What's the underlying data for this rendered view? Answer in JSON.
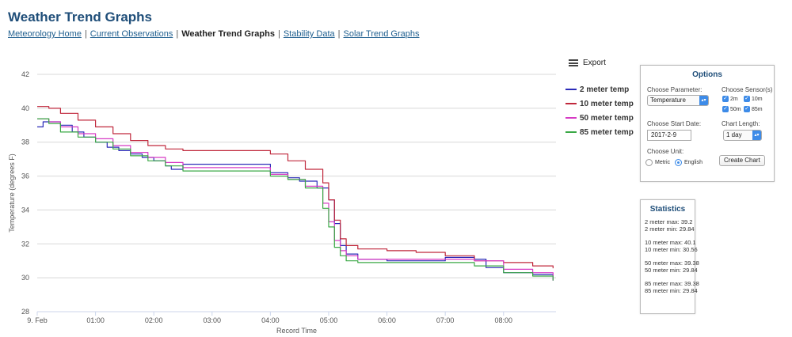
{
  "page": {
    "title": "Weather Trend Graphs"
  },
  "nav": {
    "items": [
      {
        "label": "Meteorology Home",
        "current": false
      },
      {
        "label": "Current Observations",
        "current": false
      },
      {
        "label": "Weather Trend Graphs",
        "current": true
      },
      {
        "label": "Stability Data",
        "current": false
      },
      {
        "label": "Solar Trend Graphs",
        "current": false
      }
    ],
    "separator": "|"
  },
  "export": {
    "label": "Export",
    "icon": "menu-icon"
  },
  "legend": [
    {
      "label": "2 meter temp",
      "color": "#2b2bb8"
    },
    {
      "label": "10 meter temp",
      "color": "#c0283c"
    },
    {
      "label": "50 meter temp",
      "color": "#d63bc4"
    },
    {
      "label": "85 meter temp",
      "color": "#3aa845"
    }
  ],
  "options": {
    "title": "Options",
    "parameter_label": "Choose Parameter:",
    "parameter_value": "Temperature",
    "sensors_label": "Choose Sensor(s)",
    "sensors": [
      {
        "label": "2m",
        "checked": true
      },
      {
        "label": "10m",
        "checked": true
      },
      {
        "label": "50m",
        "checked": true
      },
      {
        "label": "85m",
        "checked": true
      }
    ],
    "start_date_label": "Choose Start Date:",
    "start_date_value": "2017-2-9",
    "chart_length_label": "Chart Length:",
    "chart_length_value": "1 day",
    "unit_label": "Choose Unit:",
    "unit_metric": "Metric",
    "unit_english": "English",
    "unit_selected": "English",
    "create_button": "Create Chart"
  },
  "statistics": {
    "title": "Statistics",
    "groups": [
      {
        "max_label": "2 meter max:",
        "max": "39.2",
        "min_label": "2 meter min:",
        "min": "29.84"
      },
      {
        "max_label": "10 meter max:",
        "max": "40.1",
        "min_label": "10 meter min:",
        "min": "30.56"
      },
      {
        "max_label": "50 meter max:",
        "max": "39.38",
        "min_label": "50 meter min:",
        "min": "29.84"
      },
      {
        "max_label": "85 meter max:",
        "max": "39.38",
        "min_label": "85 meter min:",
        "min": "29.84"
      }
    ]
  },
  "chart_data": {
    "type": "line",
    "xlabel": "Record Time",
    "ylabel": "Temperature (degrees F)",
    "ylim": [
      28,
      42
    ],
    "yticks": [
      28,
      30,
      32,
      34,
      36,
      38,
      40,
      42
    ],
    "xlim": [
      0,
      8.9
    ],
    "xtick_values": [
      0,
      1,
      2,
      3,
      4,
      5,
      6,
      7,
      8
    ],
    "xticks": [
      "9. Feb",
      "01:00",
      "02:00",
      "03:00",
      "04:00",
      "05:00",
      "06:00",
      "07:00",
      "08:00"
    ],
    "grid": true,
    "series": [
      {
        "name": "2 meter temp",
        "color": "#2b2bb8",
        "x": [
          0,
          0.1,
          0.2,
          0.4,
          0.6,
          0.8,
          1.0,
          1.2,
          1.4,
          1.6,
          1.8,
          2.0,
          2.2,
          2.3,
          2.5,
          3.0,
          3.5,
          4.0,
          4.3,
          4.5,
          4.8,
          5.0,
          5.1,
          5.2,
          5.3,
          5.5,
          6.0,
          6.5,
          7.0,
          7.5,
          7.7,
          8.0,
          8.5,
          8.85
        ],
        "y": [
          38.9,
          39.2,
          39.2,
          39.0,
          38.6,
          38.3,
          38.0,
          37.7,
          37.5,
          37.3,
          37.1,
          36.9,
          36.6,
          36.4,
          36.7,
          36.7,
          36.7,
          36.2,
          35.9,
          35.7,
          35.3,
          34.6,
          33.2,
          31.9,
          31.4,
          31.1,
          31.0,
          31.0,
          31.2,
          31.1,
          30.6,
          30.3,
          30.2,
          29.84
        ]
      },
      {
        "name": "10 meter temp",
        "color": "#c0283c",
        "x": [
          0,
          0.2,
          0.4,
          0.7,
          1.0,
          1.3,
          1.6,
          1.9,
          2.2,
          2.5,
          3.0,
          3.5,
          4.0,
          4.3,
          4.6,
          4.9,
          5.0,
          5.1,
          5.2,
          5.3,
          5.5,
          6.0,
          6.5,
          7.0,
          7.5,
          8.0,
          8.5,
          8.85
        ],
        "y": [
          40.1,
          40.0,
          39.7,
          39.3,
          38.9,
          38.5,
          38.1,
          37.8,
          37.6,
          37.5,
          37.5,
          37.5,
          37.3,
          36.9,
          36.4,
          35.6,
          34.6,
          33.4,
          32.3,
          31.9,
          31.7,
          31.6,
          31.5,
          31.3,
          31.0,
          30.9,
          30.7,
          30.56
        ]
      },
      {
        "name": "50 meter temp",
        "color": "#d63bc4",
        "x": [
          0,
          0.2,
          0.4,
          0.7,
          1.0,
          1.3,
          1.6,
          1.9,
          2.2,
          2.5,
          3.0,
          3.5,
          4.0,
          4.3,
          4.6,
          4.9,
          5.0,
          5.1,
          5.2,
          5.3,
          5.5,
          6.0,
          6.5,
          7.0,
          7.5,
          8.0,
          8.5,
          8.85
        ],
        "y": [
          39.38,
          39.2,
          38.9,
          38.5,
          38.2,
          37.8,
          37.4,
          37.1,
          36.8,
          36.5,
          36.5,
          36.5,
          36.1,
          35.8,
          35.4,
          34.4,
          33.3,
          32.2,
          31.6,
          31.3,
          31.1,
          31.1,
          31.1,
          31.1,
          31.0,
          30.5,
          30.3,
          29.84
        ]
      },
      {
        "name": "85 meter temp",
        "color": "#3aa845",
        "x": [
          0,
          0.2,
          0.4,
          0.7,
          1.0,
          1.3,
          1.6,
          1.9,
          2.2,
          2.5,
          3.0,
          3.5,
          4.0,
          4.3,
          4.6,
          4.9,
          5.0,
          5.1,
          5.2,
          5.3,
          5.5,
          6.0,
          6.5,
          7.0,
          7.5,
          8.0,
          8.5,
          8.85
        ],
        "y": [
          39.38,
          39.1,
          38.6,
          38.3,
          38.0,
          37.6,
          37.2,
          36.9,
          36.6,
          36.3,
          36.3,
          36.3,
          36.0,
          35.8,
          35.3,
          34.1,
          33.0,
          31.8,
          31.3,
          31.0,
          30.9,
          30.9,
          30.9,
          30.9,
          30.7,
          30.3,
          30.1,
          29.84
        ]
      }
    ]
  }
}
